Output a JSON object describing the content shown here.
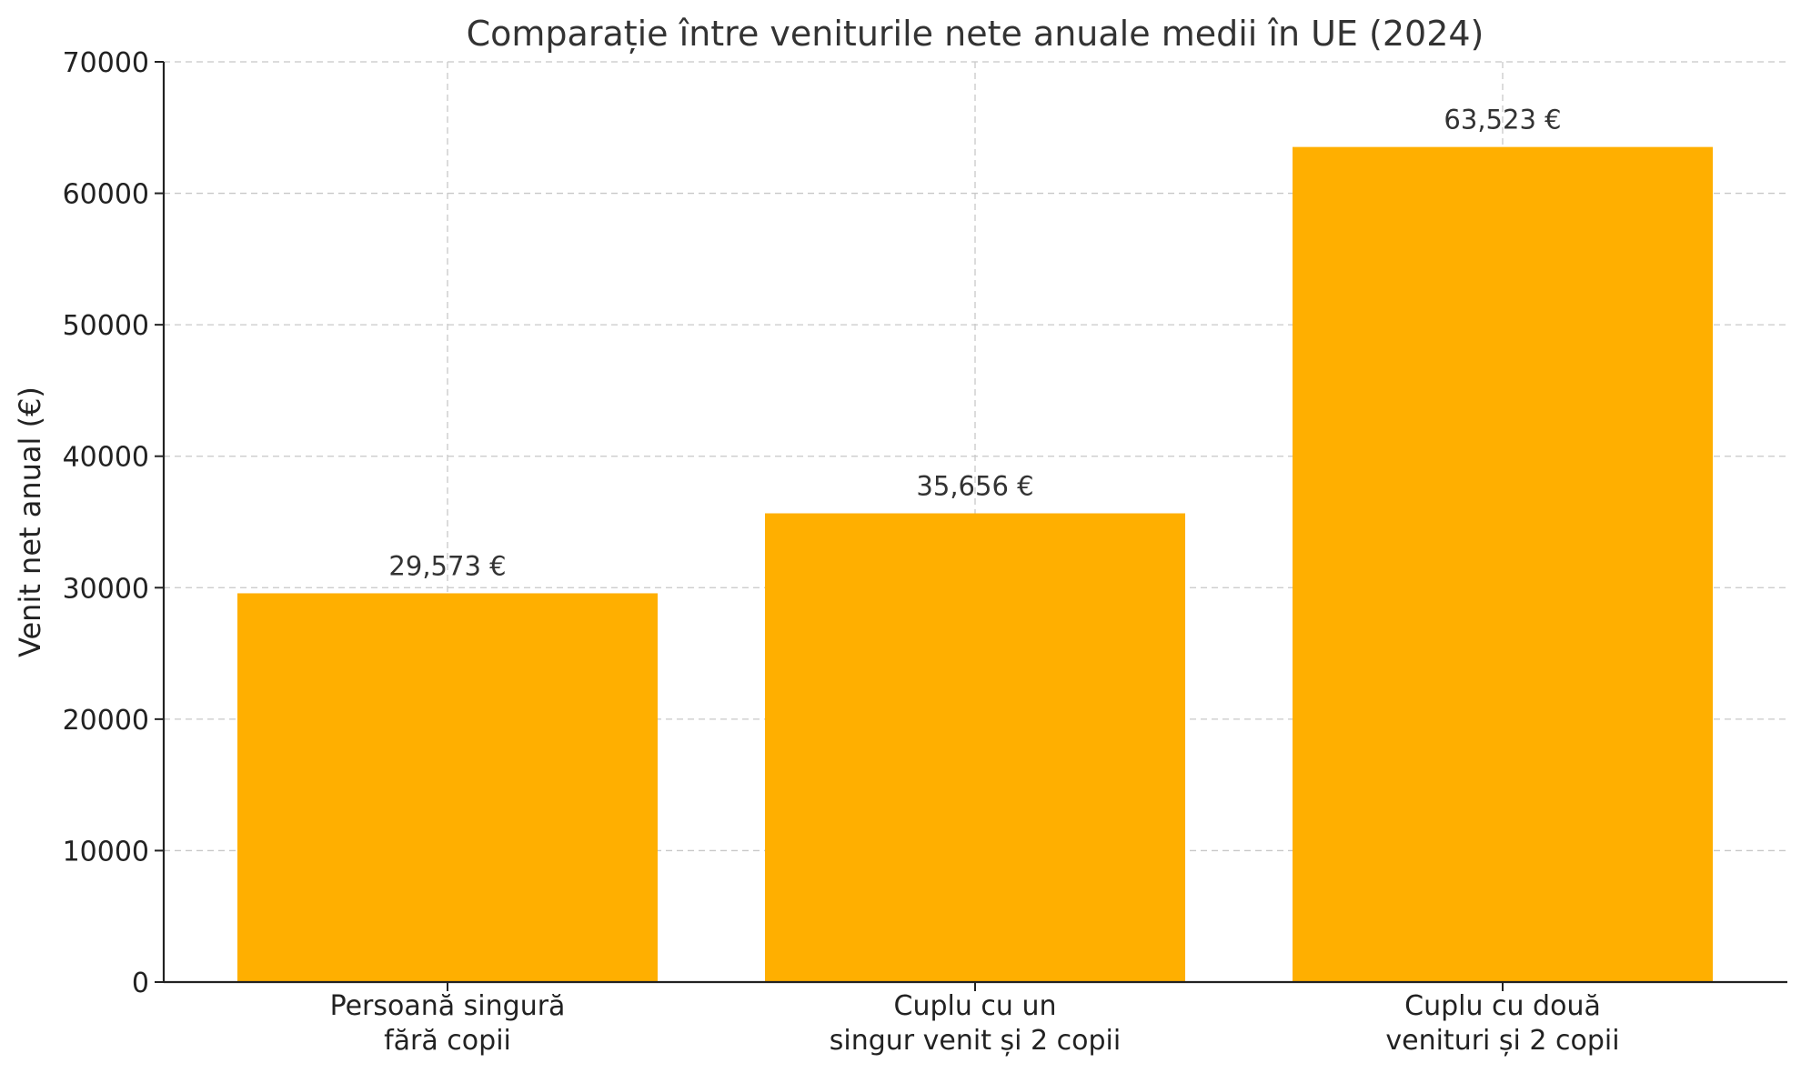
{
  "chart_data": {
    "type": "bar",
    "title": "Comparație între veniturile nete anuale medii în UE (2024)",
    "xlabel": "",
    "ylabel": "Venit net anual (€)",
    "categories": [
      [
        "Persoană singură",
        "fără copii"
      ],
      [
        "Cuplu cu un",
        "singur venit și 2 copii"
      ],
      [
        "Cuplu cu două",
        "venituri și 2 copii"
      ]
    ],
    "values": [
      29573,
      35656,
      63523
    ],
    "data_labels": [
      "29,573 €",
      "35,656 €",
      "63,523 €"
    ],
    "ylim": [
      0,
      70000
    ],
    "yticks": [
      "0",
      "10000",
      "20000",
      "30000",
      "40000",
      "50000",
      "60000",
      "70000"
    ],
    "grid": true,
    "bar_color": "#FFAF00"
  }
}
